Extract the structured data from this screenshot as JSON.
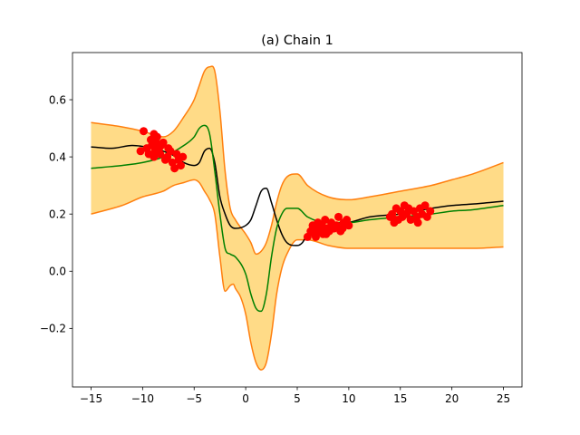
{
  "chart_data": {
    "type": "line",
    "title": "(a) Chain 1",
    "xlabel": "",
    "ylabel": "",
    "xlim": [
      -16.8,
      26.8
    ],
    "ylim": [
      -0.405,
      0.765
    ],
    "x_ticks": [
      -15,
      -10,
      -5,
      0,
      5,
      10,
      15,
      20,
      25
    ],
    "x_tick_labels": [
      "−15",
      "−10",
      "−5",
      "0",
      "5",
      "10",
      "15",
      "20",
      "25"
    ],
    "y_ticks": [
      -0.2,
      0.0,
      0.2,
      0.4,
      0.6
    ],
    "y_tick_labels": [
      "−0.2",
      "0.0",
      "0.2",
      "0.4",
      "0.6"
    ],
    "colors": {
      "band_fill": "#ffdb87",
      "band_edge": "#ff7f0e",
      "mean": "#008000",
      "truth": "#000000",
      "points": "#ff0000"
    },
    "series": [
      {
        "role": "band-upper",
        "x": [
          -15,
          -12,
          -10,
          -8,
          -7,
          -6,
          -5,
          -4.5,
          -4,
          -3.5,
          -3,
          -2.5,
          -2,
          -1.5,
          -1,
          0,
          0.5,
          1,
          1.5,
          2,
          2.5,
          3,
          3.5,
          4,
          5,
          6,
          8,
          10,
          12,
          15,
          18,
          20,
          22,
          25
        ],
        "y": [
          0.52,
          0.505,
          0.49,
          0.47,
          0.49,
          0.54,
          0.6,
          0.65,
          0.7,
          0.715,
          0.7,
          0.56,
          0.35,
          0.22,
          0.18,
          0.13,
          0.1,
          0.06,
          0.07,
          0.1,
          0.16,
          0.24,
          0.3,
          0.33,
          0.34,
          0.3,
          0.26,
          0.25,
          0.26,
          0.28,
          0.3,
          0.32,
          0.34,
          0.38
        ]
      },
      {
        "role": "band-lower",
        "x": [
          -15,
          -12,
          -10,
          -8,
          -7,
          -6,
          -5,
          -4.5,
          -4,
          -3.5,
          -3,
          -2.5,
          -2,
          -1.5,
          -1.2,
          -1,
          -0.5,
          0,
          0.5,
          1,
          1.5,
          2,
          2.5,
          3,
          3.5,
          4,
          5,
          6,
          8,
          10,
          12,
          15,
          18,
          20,
          22,
          25
        ],
        "y": [
          0.2,
          0.23,
          0.26,
          0.28,
          0.3,
          0.31,
          0.32,
          0.31,
          0.28,
          0.25,
          0.2,
          0.05,
          -0.07,
          -0.05,
          -0.045,
          -0.06,
          -0.09,
          -0.15,
          -0.25,
          -0.32,
          -0.345,
          -0.32,
          -0.22,
          -0.08,
          0.01,
          0.06,
          0.11,
          0.11,
          0.09,
          0.08,
          0.08,
          0.08,
          0.08,
          0.08,
          0.08,
          0.085
        ]
      },
      {
        "role": "mean",
        "x": [
          -15,
          -12,
          -10,
          -8,
          -6,
          -5,
          -4.5,
          -4,
          -3.5,
          -3,
          -2.5,
          -2,
          -1.5,
          -1,
          0,
          0.5,
          1,
          1.5,
          2,
          2.5,
          3,
          3.5,
          4,
          5,
          6,
          8,
          10,
          12,
          15,
          18,
          20,
          22,
          25
        ],
        "y": [
          0.36,
          0.37,
          0.38,
          0.4,
          0.44,
          0.47,
          0.5,
          0.51,
          0.48,
          0.35,
          0.2,
          0.08,
          0.06,
          0.05,
          -0.01,
          -0.08,
          -0.13,
          -0.14,
          -0.08,
          0.05,
          0.15,
          0.2,
          0.22,
          0.22,
          0.19,
          0.17,
          0.17,
          0.18,
          0.19,
          0.2,
          0.21,
          0.215,
          0.23
        ]
      },
      {
        "role": "truth",
        "x": [
          -15,
          -13,
          -11,
          -9,
          -8,
          -7,
          -6,
          -5,
          -4.5,
          -4,
          -3.5,
          -3,
          -2.5,
          -2,
          -1.5,
          -1,
          0,
          0.5,
          1,
          1.5,
          2,
          2.5,
          3,
          3.5,
          4,
          5,
          5.5,
          6,
          7,
          8,
          10,
          12,
          15,
          18,
          20,
          22,
          25
        ],
        "y": [
          0.435,
          0.43,
          0.44,
          0.43,
          0.42,
          0.405,
          0.38,
          0.37,
          0.38,
          0.42,
          0.43,
          0.38,
          0.26,
          0.2,
          0.16,
          0.15,
          0.16,
          0.18,
          0.23,
          0.28,
          0.29,
          0.24,
          0.18,
          0.13,
          0.1,
          0.09,
          0.1,
          0.13,
          0.15,
          0.16,
          0.17,
          0.19,
          0.2,
          0.22,
          0.23,
          0.235,
          0.245
        ]
      }
    ],
    "points": {
      "x": [
        -10.2,
        -9.9,
        -9.6,
        -9.4,
        -9.2,
        -9.1,
        -8.9,
        -8.8,
        -8.7,
        -8.6,
        -8.4,
        -8.3,
        -8.2,
        -8.0,
        -7.8,
        -7.6,
        -7.3,
        -7.1,
        -6.9,
        -6.7,
        -6.5,
        -6.3,
        -6.1,
        -7.5,
        -8.9,
        6.0,
        6.3,
        6.5,
        6.7,
        6.9,
        7.0,
        7.2,
        7.4,
        7.5,
        7.7,
        7.9,
        8.1,
        8.3,
        8.5,
        8.8,
        9.0,
        9.2,
        9.5,
        9.8,
        10.0,
        7.8,
        8.6,
        6.8,
        9.4,
        14.0,
        14.2,
        14.4,
        14.6,
        14.8,
        15.0,
        15.2,
        15.4,
        15.6,
        15.8,
        16.0,
        16.3,
        16.6,
        16.9,
        17.1,
        17.4,
        17.6,
        17.9,
        14.5,
        15.5,
        16.7
      ],
      "y": [
        0.42,
        0.49,
        0.43,
        0.41,
        0.46,
        0.44,
        0.48,
        0.42,
        0.45,
        0.47,
        0.43,
        0.41,
        0.44,
        0.45,
        0.39,
        0.4,
        0.42,
        0.38,
        0.36,
        0.41,
        0.39,
        0.37,
        0.4,
        0.43,
        0.4,
        0.12,
        0.14,
        0.16,
        0.13,
        0.15,
        0.17,
        0.14,
        0.16,
        0.13,
        0.18,
        0.15,
        0.14,
        0.17,
        0.15,
        0.16,
        0.19,
        0.14,
        0.17,
        0.18,
        0.16,
        0.13,
        0.15,
        0.12,
        0.15,
        0.19,
        0.2,
        0.17,
        0.22,
        0.18,
        0.21,
        0.19,
        0.23,
        0.2,
        0.22,
        0.18,
        0.21,
        0.19,
        0.22,
        0.2,
        0.23,
        0.19,
        0.21,
        0.18,
        0.2,
        0.17
      ]
    }
  }
}
